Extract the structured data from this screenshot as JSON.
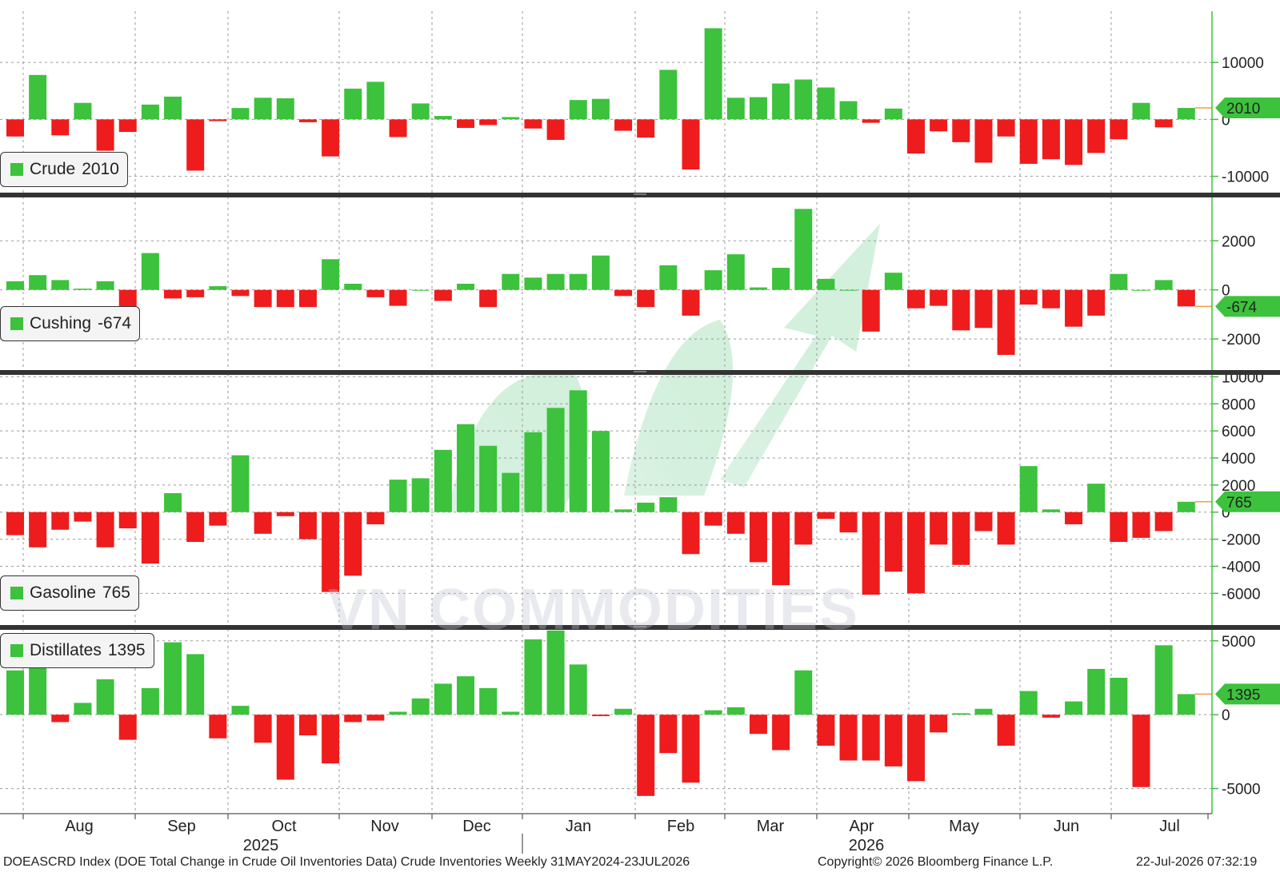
{
  "colors": {
    "positive": "#3cc23c",
    "negative": "#ee1c1c",
    "axis": "#3cc23c",
    "divider": "#333333",
    "grid": "#9a9a9a"
  },
  "watermark": "VN COMMODITIES",
  "footer": {
    "left": "DOEASCRD Index (DOE Total Change in Crude Oil Inventories Data) Crude Inventories Weekly 31MAY2024-23JUL2026",
    "center": "Copyright© 2026 Bloomberg Finance L.P.",
    "right": "22-Jul-2026 07:32:19"
  },
  "x_axis": {
    "months": [
      "Aug",
      "Sep",
      "Oct",
      "Nov",
      "Dec",
      "Jan",
      "Feb",
      "Mar",
      "Apr",
      "May",
      "Jun",
      "Jul"
    ],
    "years": [
      "2025",
      "2026"
    ]
  },
  "chart_data": [
    {
      "type": "bar",
      "name": "Crude",
      "legend": {
        "label": "Crude",
        "value": "2010"
      },
      "last_value_tag": "2010",
      "ylim": [
        -13000,
        19000
      ],
      "yticks": [
        {
          "value": 10000,
          "label": "10000"
        },
        {
          "value": 0,
          "label": "0"
        },
        {
          "value": -10000,
          "label": "-10000"
        }
      ],
      "values": [
        -3000,
        7800,
        -2800,
        2900,
        -5500,
        -2200,
        2600,
        4000,
        -9000,
        -300,
        2000,
        3800,
        3700,
        -500,
        -6500,
        5400,
        6600,
        -3100,
        2800,
        600,
        -1500,
        -1000,
        400,
        -1600,
        -3600,
        3400,
        3600,
        -2000,
        -3200,
        8700,
        -8800,
        16000,
        3800,
        3900,
        6300,
        7000,
        5600,
        3200,
        -600,
        1900,
        -6000,
        -2100,
        -4000,
        -7600,
        -3000,
        -7800,
        -7000,
        -8000,
        -5900,
        -3500,
        2900,
        -1400,
        2010
      ]
    },
    {
      "type": "bar",
      "name": "Cushing",
      "legend": {
        "label": "Cushing",
        "value": "-674"
      },
      "last_value_tag": "-674",
      "ylim": [
        -3300,
        3800
      ],
      "yticks": [
        {
          "value": 2000,
          "label": "2000"
        },
        {
          "value": 0,
          "label": "0"
        },
        {
          "value": -2000,
          "label": "-2000"
        }
      ],
      "values": [
        350,
        600,
        400,
        50,
        350,
        -750,
        1500,
        -350,
        -300,
        150,
        -250,
        -700,
        -700,
        -700,
        1250,
        250,
        -300,
        -650,
        0,
        -450,
        250,
        -700,
        650,
        500,
        650,
        650,
        1400,
        -250,
        -700,
        1000,
        -1050,
        800,
        1450,
        100,
        900,
        3300,
        450,
        0,
        -1700,
        700,
        -750,
        -650,
        -1650,
        -1550,
        -2650,
        -600,
        -750,
        -1500,
        -1050,
        650,
        0,
        400,
        -674
      ]
    },
    {
      "type": "bar",
      "name": "Gasoline",
      "legend": {
        "label": "Gasoline",
        "value": "765"
      },
      "last_value_tag": "765",
      "ylim": [
        -8400,
        10200
      ],
      "yticks": [
        {
          "value": 10000,
          "label": "10000"
        },
        {
          "value": 8000,
          "label": "8000"
        },
        {
          "value": 6000,
          "label": "6000"
        },
        {
          "value": 4000,
          "label": "4000"
        },
        {
          "value": 2000,
          "label": "2000"
        },
        {
          "value": 0,
          "label": "0"
        },
        {
          "value": -2000,
          "label": "-2000"
        },
        {
          "value": -4000,
          "label": "-4000"
        },
        {
          "value": -6000,
          "label": "-6000"
        }
      ],
      "values": [
        -1700,
        -2600,
        -1300,
        -700,
        -2600,
        -1200,
        -3800,
        1400,
        -2200,
        -1000,
        4200,
        -1600,
        -300,
        -2000,
        -5900,
        -4700,
        -900,
        2400,
        2500,
        4600,
        6500,
        4900,
        2900,
        5900,
        7700,
        9000,
        6000,
        200,
        700,
        1100,
        -3100,
        -1000,
        -1600,
        -3700,
        -5400,
        -2400,
        -500,
        -1500,
        -6100,
        -4400,
        -6000,
        -2400,
        -3900,
        -1400,
        -2400,
        3400,
        200,
        -900,
        2100,
        -2200,
        -1900,
        -1400,
        765
      ]
    },
    {
      "type": "bar",
      "name": "Distillates",
      "legend": {
        "label": "Distillates",
        "value": "1395"
      },
      "last_value_tag": "1395",
      "ylim": [
        -6700,
        5800
      ],
      "yticks": [
        {
          "value": 5000,
          "label": "5000"
        },
        {
          "value": 0,
          "label": "0"
        },
        {
          "value": -5000,
          "label": "-5000"
        }
      ],
      "values": [
        3000,
        3600,
        -500,
        800,
        2400,
        -1700,
        1800,
        4900,
        4100,
        -1600,
        600,
        -1900,
        -4400,
        -1400,
        -3300,
        -500,
        -400,
        200,
        1100,
        2100,
        2600,
        1800,
        200,
        5100,
        5700,
        3400,
        -100,
        400,
        -5500,
        -2600,
        -4600,
        300,
        500,
        -1300,
        -2400,
        3000,
        -2100,
        -3100,
        -3100,
        -3500,
        -4500,
        -1200,
        100,
        400,
        -2100,
        1600,
        -200,
        900,
        3100,
        2500,
        -4900,
        4700,
        1395
      ]
    }
  ]
}
